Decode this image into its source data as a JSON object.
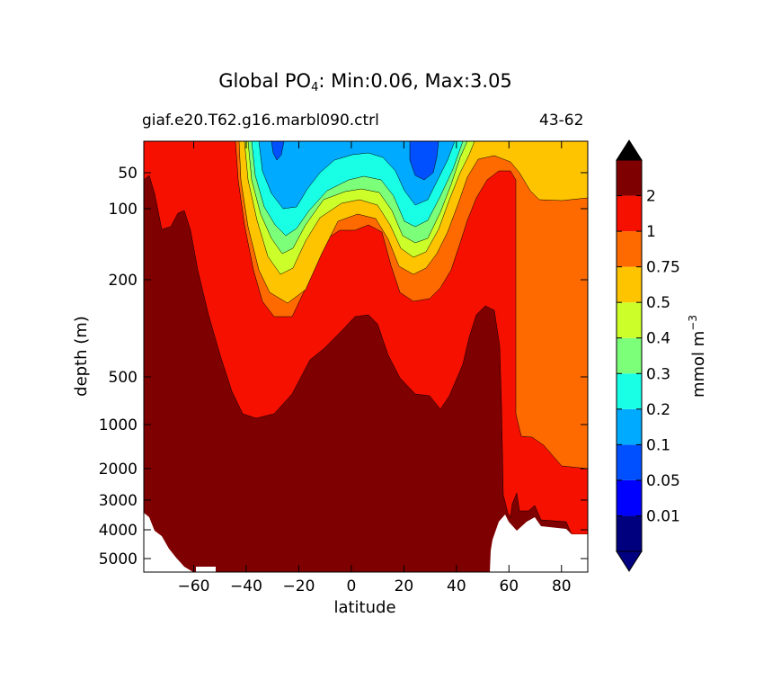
{
  "title": {
    "prefix": "Global PO",
    "subscript": "4",
    "suffix": ": Min:0.06, Max:3.05"
  },
  "subtitle_left": "giaf.e20.T62.g16.marbl090.ctrl",
  "subtitle_right": "43-62",
  "chart_data": {
    "type": "heatmap",
    "title": "Global PO4: Min:0.06, Max:3.05",
    "xlabel": "latitude",
    "ylabel": "depth (m)",
    "xlim": [
      -79,
      90
    ],
    "ylim": [
      5500,
      10
    ],
    "y_scale": "piecewise (compressed deep levels)",
    "x_ticks": [
      -60,
      -40,
      -20,
      0,
      20,
      40,
      60,
      80
    ],
    "y_ticks": [
      50,
      100,
      200,
      500,
      1000,
      2000,
      3000,
      4000,
      5000
    ],
    "colorbar": {
      "label": "mmol m^-3",
      "label_base": "mmol m",
      "label_exp": "−3",
      "extend": "both",
      "levels": [
        0.01,
        0.05,
        0.1,
        0.2,
        0.3,
        0.4,
        0.5,
        0.75,
        1,
        2
      ],
      "tick_labels": [
        "0.01",
        "0.05",
        "0.1",
        "0.2",
        "0.3",
        "0.4",
        "0.5",
        "0.75",
        "1",
        "2"
      ],
      "colors": [
        "#00007f",
        "#0000ff",
        "#0050ff",
        "#00aaff",
        "#19ffe6",
        "#7cff79",
        "#ccff2a",
        "#ffc400",
        "#ff6a00",
        "#f51000",
        "#7f0000"
      ],
      "under_color": "#000080",
      "over_color": "#000000"
    },
    "fields": [
      {
        "level": 1,
        "color": "#ff6a00",
        "description": "0.75-1 band, subtropical and Arctic"
      },
      {
        "level": 2,
        "color": "#f51000",
        "description": "1-2 band"
      },
      {
        "level": 3,
        "color": "#7f0000",
        "description": ">2 deep water"
      },
      {
        "level": 4,
        "color": "#ffc400",
        "description": "0.5-0.75 band"
      },
      {
        "level": 5,
        "color": "#ccff2a",
        "description": "0.4-0.5 band"
      },
      {
        "level": 6,
        "color": "#7cff79",
        "description": "0.3-0.4 band"
      },
      {
        "level": 7,
        "color": "#19ffe6",
        "description": "0.2-0.3 band"
      },
      {
        "level": 8,
        "color": "#00aaff",
        "description": "0.1-0.2 band, subtropical gyres"
      },
      {
        "level": 9,
        "color": "#0050ff",
        "description": "0.05-0.1 band, gyre cores"
      }
    ],
    "land_color": "#ffffff"
  },
  "icons": {
    "extend_top": "triangle-up-icon",
    "extend_bottom": "triangle-down-icon"
  }
}
